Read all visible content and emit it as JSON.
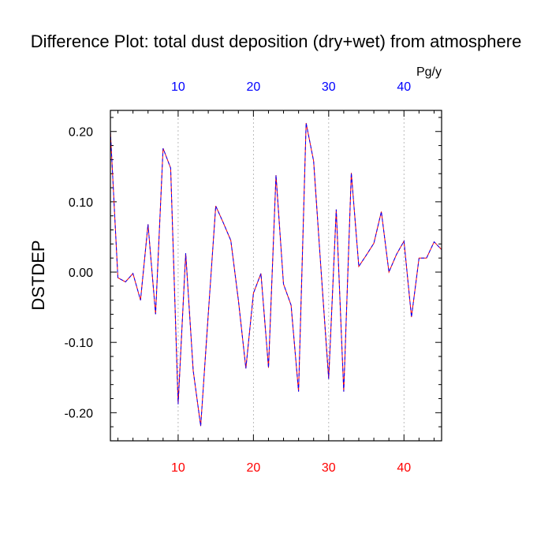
{
  "chart_data": {
    "type": "line",
    "title": "Difference Plot: total dust deposition (dry+wet) from atmosphere",
    "units": "Pg/y",
    "ylabel": "DSTDEP",
    "xlim": [
      1,
      45
    ],
    "ylim": [
      -0.24,
      0.23
    ],
    "x_ticks": [
      10,
      20,
      30,
      40
    ],
    "y_ticks": [
      0.2,
      0.1,
      0.0,
      -0.1,
      -0.2
    ],
    "y_tick_labels": [
      "0.20",
      "0.10",
      "0.00",
      "-0.10",
      "-0.20"
    ],
    "x_ticks_top_color": "#0000ff",
    "x_ticks_bottom_color": "#ff0000",
    "grid": "dashed vertical at x ticks",
    "series": [
      {
        "color_a": "#ff0000",
        "color_b": "#0000ff",
        "x": [
          1,
          2,
          3,
          4,
          5,
          6,
          7,
          8,
          9,
          10,
          11,
          12,
          13,
          14,
          15,
          16,
          17,
          18,
          19,
          20,
          21,
          22,
          23,
          24,
          25,
          26,
          27,
          28,
          29,
          30,
          31,
          32,
          33,
          34,
          35,
          36,
          37,
          38,
          39,
          40,
          41,
          42,
          43,
          44,
          45
        ],
        "values": [
          0.2,
          -0.008,
          -0.014,
          -0.002,
          -0.04,
          0.068,
          -0.06,
          0.176,
          0.148,
          -0.188,
          0.027,
          -0.14,
          -0.219,
          -0.06,
          0.094,
          0.07,
          0.045,
          -0.04,
          -0.137,
          -0.03,
          -0.002,
          -0.136,
          0.138,
          -0.017,
          -0.047,
          -0.17,
          0.212,
          0.158,
          0.0,
          -0.152,
          0.089,
          -0.17,
          0.141,
          0.008,
          0.024,
          0.041,
          0.086,
          0.0,
          0.025,
          0.044,
          -0.064,
          0.02,
          0.02,
          0.043,
          0.032
        ]
      }
    ]
  }
}
